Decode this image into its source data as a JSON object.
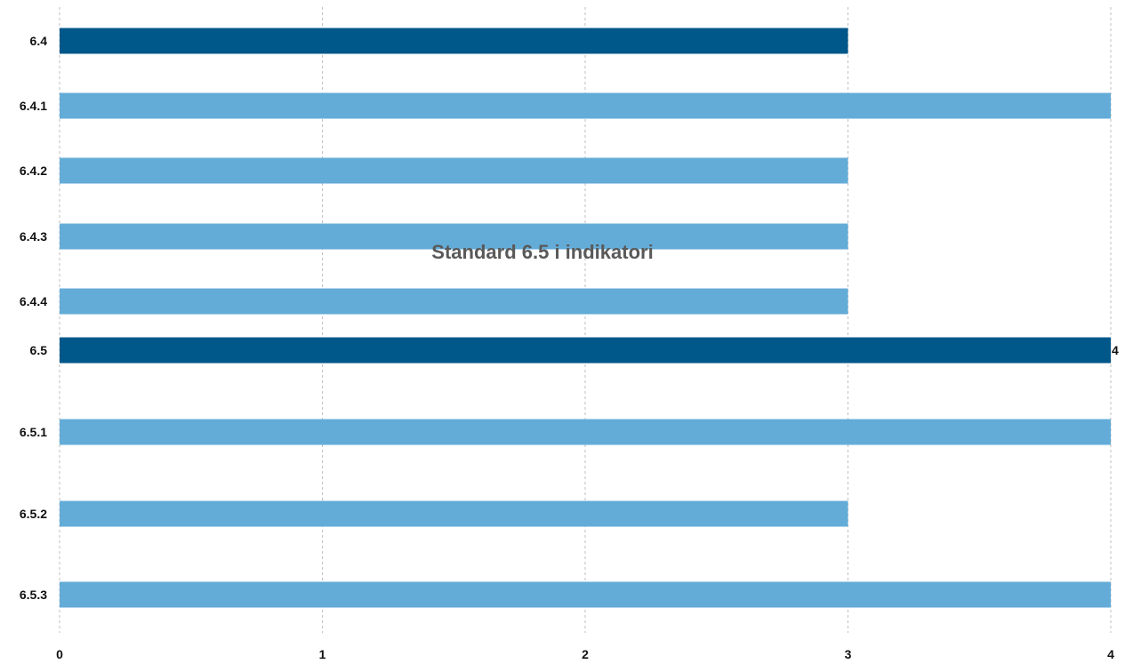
{
  "chart_data": {
    "type": "bar",
    "orientation": "horizontal",
    "title": "Standard 6.5 i indikatori",
    "xlabel": "",
    "ylabel": "",
    "xlim": [
      0,
      4
    ],
    "x_ticks": [
      "0",
      "1",
      "2",
      "3",
      "4"
    ],
    "grid": "vertical dashed",
    "categories": [
      "6.4",
      "6.4.1",
      "6.4.2",
      "6.4.3",
      "6.4.4",
      "6.5",
      "6.5.1",
      "6.5.2",
      "6.5.3"
    ],
    "values": [
      3,
      4,
      3,
      3,
      3,
      4,
      4,
      3,
      4
    ],
    "highlight": [
      "6.4",
      "6.5"
    ],
    "data_labels": [
      {
        "category": "6.5",
        "text": "4"
      }
    ],
    "colors": {
      "highlight": "#00578a",
      "normal": "#63acd8"
    }
  }
}
